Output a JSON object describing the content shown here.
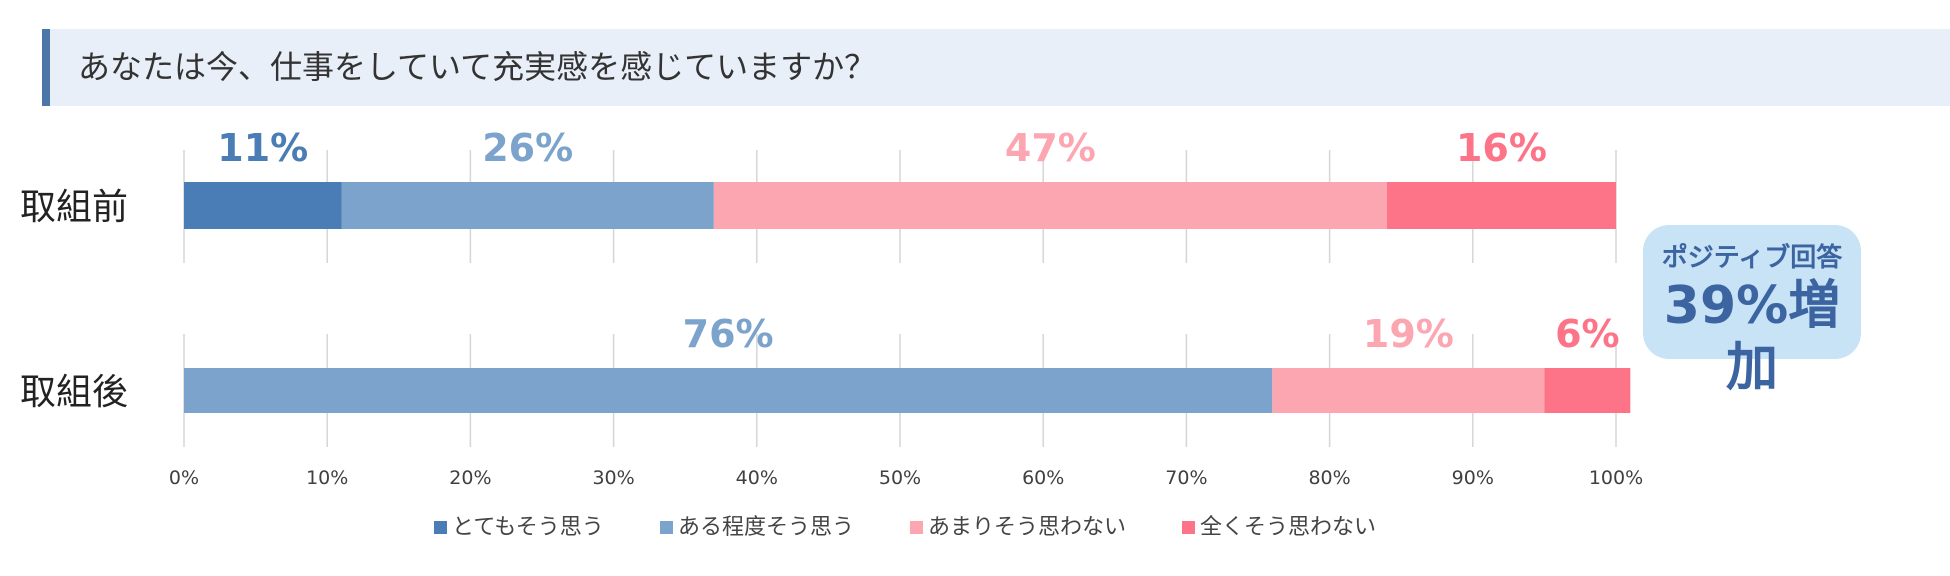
{
  "title": "あなたは今、仕事をしていて充実感を感じていますか？",
  "callout": {
    "line1": "ポジティブ回答",
    "line2": "39%増加"
  },
  "colors": {
    "とてもそう思う": "#4a7db6",
    "ある程度そう思う": "#7ba3cb",
    "あまりそう思わない": "#fca6b2",
    "全くそう思わない": "#fd7488",
    "grid": "#d6d6d6",
    "axis_text": "#404040",
    "category_text": "#222222"
  },
  "chart_data": {
    "type": "bar",
    "orientation": "horizontal",
    "stacked": true,
    "categories": [
      "取組前",
      "取組後"
    ],
    "series": [
      {
        "name": "とてもそう思う",
        "values": [
          11,
          0
        ]
      },
      {
        "name": "ある程度そう思う",
        "values": [
          26,
          76
        ]
      },
      {
        "name": "あまりそう思わない",
        "values": [
          47,
          19
        ]
      },
      {
        "name": "全くそう思わない",
        "values": [
          16,
          6
        ]
      }
    ],
    "data_labels": [
      [
        "11%",
        "26%",
        "47%",
        "16%"
      ],
      [
        "",
        "76%",
        "19%",
        "6%"
      ]
    ],
    "xlim": [
      0,
      100
    ],
    "xticks": [
      "0%",
      "10%",
      "20%",
      "30%",
      "40%",
      "50%",
      "60%",
      "70%",
      "80%",
      "90%",
      "100%"
    ],
    "grid": true,
    "legend_position": "bottom"
  }
}
